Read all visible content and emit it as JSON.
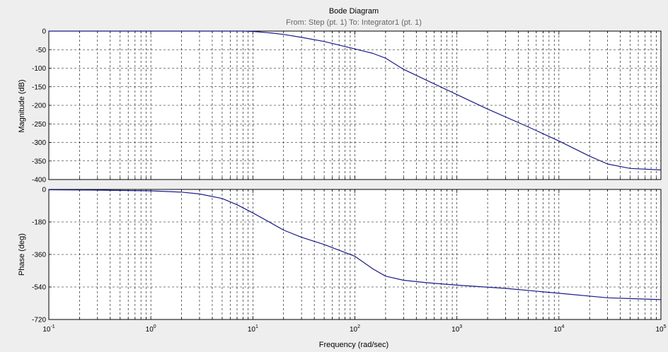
{
  "title": "Bode Diagram",
  "subtitle": "From: Step (pt. 1)  To: Integrator1 (pt. 1)",
  "xlabel": "Frequency  (rad/sec)",
  "colors": {
    "background": "#eeeeee",
    "axes": "#ffffff",
    "grid": "#000000",
    "line": "#1a1a8c"
  },
  "chart_data": [
    {
      "type": "line",
      "name": "magnitude-plot",
      "ylabel": "Magnitude (dB)",
      "xscale": "log",
      "xlim": [
        0.1,
        100000
      ],
      "ylim": [
        -400,
        0
      ],
      "yticks": [
        0,
        -50,
        -100,
        -150,
        -200,
        -250,
        -300,
        -350,
        -400
      ],
      "xticks": [
        {
          "value": 0.1,
          "base": "10",
          "exp": "-1"
        },
        {
          "value": 1,
          "base": "10",
          "exp": "0"
        },
        {
          "value": 10,
          "base": "10",
          "exp": "1"
        },
        {
          "value": 100,
          "base": "10",
          "exp": "2"
        },
        {
          "value": 1000,
          "base": "10",
          "exp": "3"
        },
        {
          "value": 10000,
          "base": "10",
          "exp": "4"
        },
        {
          "value": 100000,
          "base": "10",
          "exp": "5"
        }
      ],
      "grid": true,
      "series": [
        {
          "x": [
            0.1,
            1,
            5,
            8,
            10,
            15,
            20,
            30,
            50,
            100,
            150,
            200,
            300,
            500,
            1000,
            2000,
            5000,
            10000,
            20000,
            30000,
            50000,
            100000
          ],
          "y": [
            0,
            0,
            0,
            0,
            -1,
            -5,
            -9,
            -17,
            -28,
            -48,
            -60,
            -73,
            -103,
            -132,
            -171,
            -210,
            -258,
            -296,
            -337,
            -358,
            -370,
            -374
          ]
        }
      ]
    },
    {
      "type": "line",
      "name": "phase-plot",
      "ylabel": "Phase (deg)",
      "xscale": "log",
      "xlim": [
        0.1,
        100000
      ],
      "ylim": [
        -720,
        0
      ],
      "yticks": [
        0,
        -180,
        -360,
        -540,
        -720
      ],
      "xticks": [
        {
          "value": 0.1,
          "base": "10",
          "exp": "-1"
        },
        {
          "value": 1,
          "base": "10",
          "exp": "0"
        },
        {
          "value": 10,
          "base": "10",
          "exp": "1"
        },
        {
          "value": 100,
          "base": "10",
          "exp": "2"
        },
        {
          "value": 1000,
          "base": "10",
          "exp": "3"
        },
        {
          "value": 10000,
          "base": "10",
          "exp": "4"
        },
        {
          "value": 100000,
          "base": "10",
          "exp": "5"
        }
      ],
      "grid": true,
      "series": [
        {
          "x": [
            0.1,
            0.3,
            1,
            2,
            3,
            5,
            7,
            10,
            15,
            20,
            30,
            50,
            100,
            150,
            200,
            300,
            500,
            1000,
            3000,
            10000,
            30000,
            100000
          ],
          "y": [
            -2,
            -4,
            -8,
            -15,
            -25,
            -50,
            -85,
            -130,
            -185,
            -225,
            -265,
            -305,
            -370,
            -440,
            -480,
            -503,
            -516,
            -530,
            -548,
            -575,
            -600,
            -610
          ]
        }
      ]
    }
  ]
}
